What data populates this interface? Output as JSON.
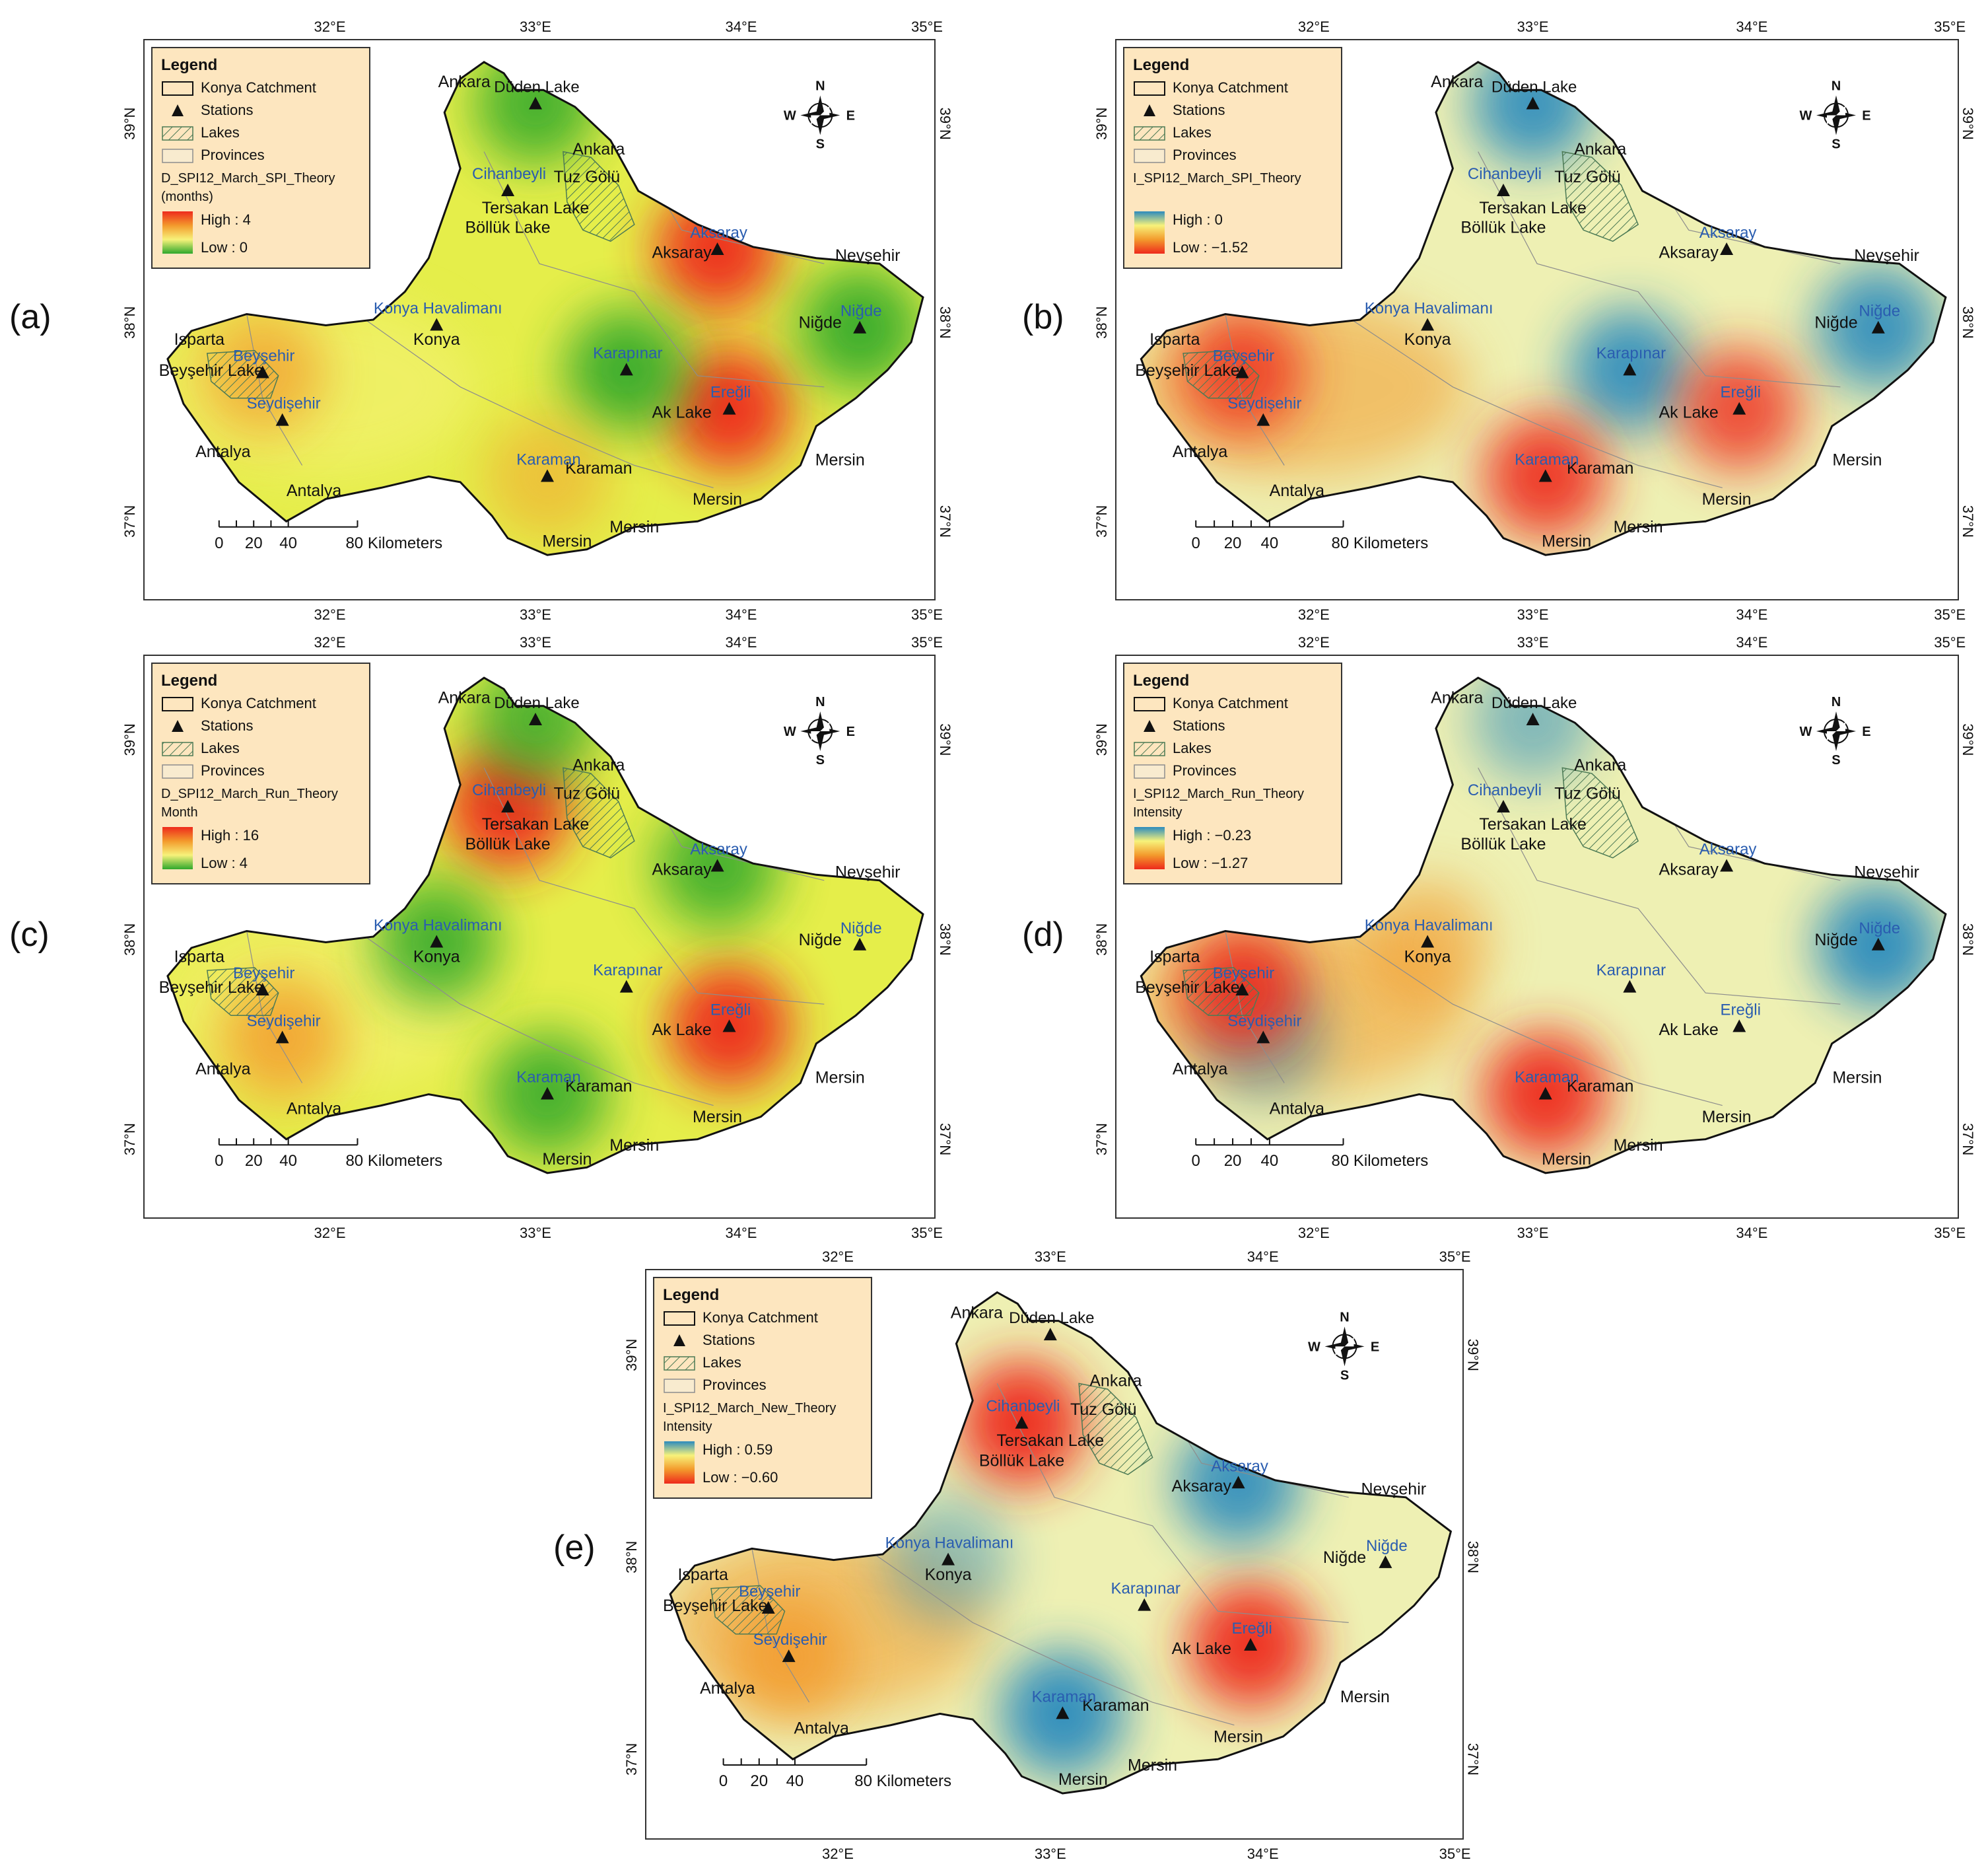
{
  "panel_letters": [
    "(a)",
    "(b)",
    "(c)",
    "(d)",
    "(e)"
  ],
  "graticule": {
    "lon_labels": [
      "32°E",
      "33°E",
      "34°E",
      "35°E"
    ],
    "lat_labels": [
      "39°N",
      "38°N",
      "37°N"
    ]
  },
  "compass": {
    "n": "N",
    "s": "S",
    "e": "E",
    "w": "W"
  },
  "scale_bar": {
    "ticks": [
      "0",
      "20",
      "40"
    ],
    "end_label": "80 Kilometers"
  },
  "legend": {
    "title": "Legend",
    "items": [
      "Konya Catchment",
      "Stations",
      "Lakes",
      "Provinces"
    ]
  },
  "colors": {
    "red": "#ee2a1c",
    "orange": "#f39a2c",
    "yellow": "#f7f27a",
    "green": "#2fa82c",
    "blue": "#2c8bbd",
    "pale": "#eef0b3",
    "legend_bg": "#fde6bf",
    "station_label": "#2a5db0"
  },
  "panels": [
    {
      "letter": "(a)",
      "variable": "D_SPI12_March_SPI_Theory",
      "unit": "(months)",
      "high_label": "High : 4",
      "low_label": "Low : 0",
      "ramp": "red-green",
      "hotspots": [
        {
          "near": "Aksaray",
          "tone": "red",
          "strength": 0.95
        },
        {
          "near": "Ereğli",
          "tone": "red",
          "strength": 0.95
        },
        {
          "near": "Karapınar",
          "tone": "green",
          "strength": 0.9
        },
        {
          "near": "Niğde",
          "tone": "green",
          "strength": 0.9
        },
        {
          "near": "Düden Lake",
          "tone": "green",
          "strength": 0.85
        },
        {
          "near": "Beyşehir",
          "tone": "orange",
          "strength": 0.7
        },
        {
          "near": "Karaman",
          "tone": "orange",
          "strength": 0.5
        }
      ]
    },
    {
      "letter": "(b)",
      "variable": "I_SPI12_March_SPI_Theory",
      "unit": "",
      "high_label": "High : 0",
      "low_label": "Low : −1.52",
      "ramp": "blue-red",
      "hotspots": [
        {
          "near": "Düden Lake",
          "tone": "blue",
          "strength": 0.9
        },
        {
          "near": "Karapınar",
          "tone": "blue",
          "strength": 0.9
        },
        {
          "near": "Niğde",
          "tone": "blue",
          "strength": 0.9
        },
        {
          "near": "Karaman",
          "tone": "red",
          "strength": 0.9
        },
        {
          "near": "Ereğli",
          "tone": "red",
          "strength": 0.8
        },
        {
          "near": "Beyşehir",
          "tone": "red",
          "strength": 0.8
        }
      ]
    },
    {
      "letter": "(c)",
      "variable": "D_SPI12_March_Run_Theory",
      "unit": "Month",
      "high_label": "High : 16",
      "low_label": "Low : 4",
      "ramp": "red-green",
      "hotspots": [
        {
          "near": "Cihanbeyli",
          "tone": "red",
          "strength": 0.95
        },
        {
          "near": "Ereğli",
          "tone": "red",
          "strength": 0.95
        },
        {
          "near": "Seydişehir",
          "tone": "orange",
          "strength": 0.8
        },
        {
          "near": "Konya Havalimanı",
          "tone": "green",
          "strength": 0.85
        },
        {
          "near": "Aksaray",
          "tone": "green",
          "strength": 0.85
        },
        {
          "near": "Karaman",
          "tone": "green",
          "strength": 0.85
        },
        {
          "near": "Düden Lake",
          "tone": "green",
          "strength": 0.8
        }
      ]
    },
    {
      "letter": "(d)",
      "variable": "I_SPI12_March_Run_Theory",
      "unit": "Intensity",
      "high_label": "High : −0.23",
      "low_label": "Low : −1.27",
      "ramp": "blue-red",
      "hotspots": [
        {
          "near": "Niğde",
          "tone": "blue",
          "strength": 0.95
        },
        {
          "near": "Düden Lake",
          "tone": "blue",
          "strength": 0.55
        },
        {
          "near": "Seydişehir",
          "tone": "blue",
          "strength": 0.5
        },
        {
          "near": "Karaman",
          "tone": "red",
          "strength": 0.95
        },
        {
          "near": "Beyşehir",
          "tone": "red",
          "strength": 0.9
        },
        {
          "near": "Konya Havalimanı",
          "tone": "orange",
          "strength": 0.6
        }
      ]
    },
    {
      "letter": "(e)",
      "variable": "I_SPI12_March_New_Theory",
      "unit": "Intensity",
      "high_label": "High : 0.59",
      "low_label": "Low : −0.60",
      "ramp": "blue-red",
      "hotspots": [
        {
          "near": "Cihanbeyli",
          "tone": "red",
          "strength": 0.95
        },
        {
          "near": "Ereğli",
          "tone": "red",
          "strength": 0.95
        },
        {
          "near": "Seydişehir",
          "tone": "orange",
          "strength": 0.8
        },
        {
          "near": "Aksaray",
          "tone": "blue",
          "strength": 0.9
        },
        {
          "near": "Karaman",
          "tone": "blue",
          "strength": 0.95
        },
        {
          "near": "Konya Havalimanı",
          "tone": "blue",
          "strength": 0.45
        }
      ]
    }
  ],
  "stations": [
    {
      "name": "Düden Lake",
      "kind": "black"
    },
    {
      "name": "Cihanbeyli",
      "kind": "blue"
    },
    {
      "name": "Aksaray",
      "kind": "blue"
    },
    {
      "name": "Konya Havalimanı",
      "kind": "blue"
    },
    {
      "name": "Niğde",
      "kind": "blue"
    },
    {
      "name": "Karapınar",
      "kind": "blue"
    },
    {
      "name": "Beyşehir",
      "kind": "blue"
    },
    {
      "name": "Seydişehir",
      "kind": "blue"
    },
    {
      "name": "Ereğli",
      "kind": "blue"
    },
    {
      "name": "Karaman",
      "kind": "blue"
    }
  ],
  "place_labels": [
    "Ankara",
    "Ankara",
    "Tuz Gölü",
    "Tersakan Lake",
    "Böllük Lake",
    "Aksaray",
    "Nevşehir",
    "Niğde",
    "Konya",
    "Isparta",
    "Beyşehir Lake",
    "Antalya",
    "Antalya",
    "Ak Lake",
    "Karaman",
    "Mersin",
    "Mersin",
    "Mersin",
    "Mersin"
  ]
}
